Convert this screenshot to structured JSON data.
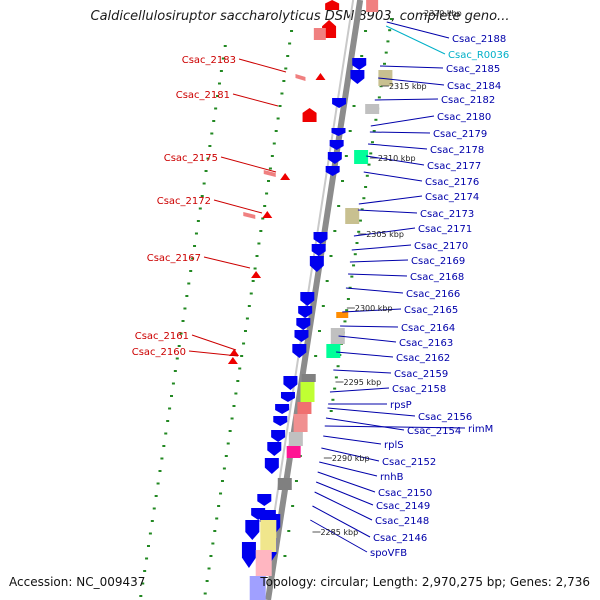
{
  "title": "Caldicellulosiruptor saccharolyticus DSM 8903, complete geno...",
  "footer": {
    "accession": "Accession: NC_009437",
    "summary": "Topology: circular; Length: 2,970,275 bp; Genes: 2,736"
  },
  "colors": {
    "left_label": "#cc0000",
    "right_label": "#0000aa",
    "rna_label": "#00b0c8",
    "backbone": "#8c8c8c",
    "gene_forward": "#0000ee",
    "gene_reverse": "#ee0000",
    "tick": "#228822"
  },
  "left_labels": [
    "Csac_2183",
    "Csac_2181",
    "Csac_2175",
    "Csac_2172",
    "Csac_2167",
    "Csac_2161",
    "Csac_2160"
  ],
  "right_labels": [
    "2320 kbp",
    "Csac_2188",
    "Csac_R0036",
    "Csac_2185",
    "Csac_2184",
    "Csac_2182",
    "Csac_2180",
    "Csac_2179",
    "Csac_2178",
    "Csac_2177",
    "Csac_2176",
    "Csac_2174",
    "Csac_2173",
    "Csac_2171",
    "Csac_2170",
    "Csac_2169",
    "Csac_2168",
    "Csac_2166",
    "Csac_2165",
    "Csac_2164",
    "Csac_2163",
    "Csac_2162",
    "Csac_2159",
    "Csac_2158",
    "rpsP",
    "Csac_2156",
    "rimM",
    "Csac_2154",
    "rplS",
    "Csac_2152",
    "rnhB",
    "Csac_2150",
    "Csac_2149",
    "Csac_2148",
    "Csac_2146",
    "spoVFB"
  ],
  "kbp_marks": [
    "2315 kbp",
    "2310 kbp",
    "2305 kbp",
    "2300 kbp",
    "2295 kbp",
    "2290 kbp",
    "2285 kbp"
  ]
}
